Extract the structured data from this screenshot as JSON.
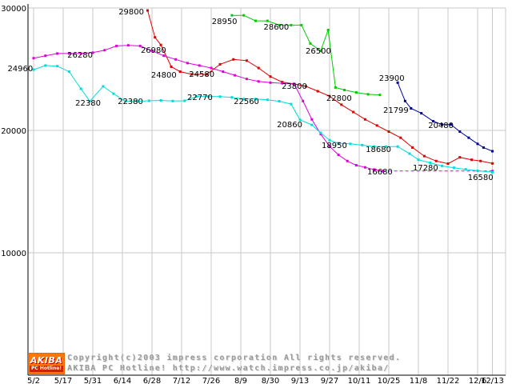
{
  "chart_data": {
    "type": "line",
    "title": "",
    "xlabel": "",
    "ylabel": "",
    "ylim": [
      0,
      30650
    ],
    "grid": true,
    "axis_color": "#000000",
    "grid_color": "#c9c9c9",
    "label_color": "#000000",
    "x_ticks": [
      {
        "label": "5/2",
        "i": 0
      },
      {
        "label": "5/17",
        "i": 1
      },
      {
        "label": "5/31",
        "i": 2
      },
      {
        "label": "6/14",
        "i": 3
      },
      {
        "label": "6/28",
        "i": 4
      },
      {
        "label": "7/12",
        "i": 5
      },
      {
        "label": "7/26",
        "i": 6
      },
      {
        "label": "8/9",
        "i": 7
      },
      {
        "label": "8/30",
        "i": 8
      },
      {
        "label": "9/13",
        "i": 9
      },
      {
        "label": "9/27",
        "i": 10
      },
      {
        "label": "10/11",
        "i": 11
      },
      {
        "label": "10/25",
        "i": 12
      },
      {
        "label": "11/8",
        "i": 13
      },
      {
        "label": "11/22",
        "i": 14
      },
      {
        "label": "12/6",
        "i": 15
      },
      {
        "label": "12/13",
        "i": 15.5
      }
    ],
    "y_ticks": [
      {
        "label": "10000",
        "v": 10000
      },
      {
        "label": "20000",
        "v": 20000
      },
      {
        "label": "30000",
        "v": 30000
      }
    ],
    "series": [
      {
        "name": "series-red",
        "color": "#dd0000",
        "dashed": false,
        "points": [
          [
            3.85,
            29800
          ],
          [
            4.1,
            27600
          ],
          [
            4.3,
            26980
          ],
          [
            4.65,
            25200
          ],
          [
            4.95,
            24800
          ],
          [
            5.35,
            24580
          ],
          [
            5.85,
            24580
          ],
          [
            6.3,
            25400
          ],
          [
            6.75,
            25800
          ],
          [
            7.2,
            25700
          ],
          [
            7.6,
            25100
          ],
          [
            8.0,
            24400
          ],
          [
            8.4,
            23950
          ],
          [
            8.8,
            23800
          ],
          [
            9.2,
            23600
          ],
          [
            9.6,
            23200
          ],
          [
            10.0,
            22800
          ],
          [
            10.4,
            22100
          ],
          [
            10.8,
            21500
          ],
          [
            11.2,
            20900
          ],
          [
            11.6,
            20400
          ],
          [
            12.0,
            19900
          ],
          [
            12.4,
            19400
          ],
          [
            12.8,
            18600
          ],
          [
            13.2,
            17900
          ],
          [
            13.6,
            17500
          ],
          [
            14.0,
            17280
          ],
          [
            14.4,
            17800
          ],
          [
            14.8,
            17600
          ],
          [
            15.1,
            17500
          ],
          [
            15.5,
            17300
          ]
        ]
      },
      {
        "name": "series-green",
        "color": "#00cc00",
        "dashed": false,
        "points": [
          [
            6.7,
            29400
          ],
          [
            7.1,
            29400
          ],
          [
            7.5,
            28950
          ],
          [
            7.9,
            28950
          ],
          [
            8.3,
            28600
          ],
          [
            8.7,
            28600
          ],
          [
            9.05,
            28600
          ],
          [
            9.35,
            27100
          ],
          [
            9.7,
            26500
          ],
          [
            9.95,
            28200
          ],
          [
            10.2,
            23500
          ],
          [
            10.5,
            23300
          ],
          [
            10.9,
            23100
          ],
          [
            11.3,
            22950
          ],
          [
            11.7,
            22900
          ]
        ]
      },
      {
        "name": "series-magenta",
        "color": "#dd00dd",
        "dashed": false,
        "points": [
          [
            0,
            25900
          ],
          [
            0.4,
            26100
          ],
          [
            0.8,
            26280
          ],
          [
            1.2,
            26280
          ],
          [
            1.6,
            26280
          ],
          [
            2.0,
            26350
          ],
          [
            2.4,
            26550
          ],
          [
            2.8,
            26900
          ],
          [
            3.2,
            26950
          ],
          [
            3.6,
            26900
          ],
          [
            4.0,
            26500
          ],
          [
            4.4,
            26100
          ],
          [
            4.8,
            25800
          ],
          [
            5.2,
            25500
          ],
          [
            5.6,
            25300
          ],
          [
            6.0,
            25100
          ],
          [
            6.4,
            24800
          ],
          [
            6.8,
            24500
          ],
          [
            7.2,
            24200
          ],
          [
            7.6,
            24000
          ],
          [
            8.0,
            23900
          ],
          [
            8.4,
            23850
          ],
          [
            8.8,
            23800
          ],
          [
            9.1,
            22400
          ],
          [
            9.4,
            20900
          ],
          [
            9.7,
            19700
          ],
          [
            10.0,
            18700
          ],
          [
            10.3,
            18000
          ],
          [
            10.6,
            17500
          ],
          [
            10.9,
            17150
          ],
          [
            11.2,
            16980
          ],
          [
            11.5,
            16800
          ],
          [
            11.8,
            16680
          ]
        ]
      },
      {
        "name": "series-magenta-flat",
        "color": "#dd00dd",
        "dashed": true,
        "points": [
          [
            11.8,
            16680
          ],
          [
            15.5,
            16680
          ]
        ]
      },
      {
        "name": "series-cyan",
        "color": "#00dddd",
        "dashed": false,
        "points": [
          [
            0,
            24960
          ],
          [
            0.4,
            25300
          ],
          [
            0.8,
            25250
          ],
          [
            1.2,
            24800
          ],
          [
            1.6,
            23400
          ],
          [
            1.9,
            22380
          ],
          [
            2.35,
            23600
          ],
          [
            2.7,
            23000
          ],
          [
            3.1,
            22380
          ],
          [
            3.5,
            22380
          ],
          [
            3.9,
            22420
          ],
          [
            4.3,
            22450
          ],
          [
            4.7,
            22400
          ],
          [
            5.1,
            22420
          ],
          [
            5.5,
            22770
          ],
          [
            5.9,
            22770
          ],
          [
            6.3,
            22760
          ],
          [
            6.7,
            22700
          ],
          [
            7.1,
            22560
          ],
          [
            7.5,
            22560
          ],
          [
            7.9,
            22500
          ],
          [
            8.3,
            22380
          ],
          [
            8.7,
            22150
          ],
          [
            9.0,
            20860
          ],
          [
            9.4,
            20450
          ],
          [
            9.7,
            19800
          ],
          [
            10.0,
            19200
          ],
          [
            10.3,
            18950
          ],
          [
            10.7,
            18900
          ],
          [
            11.1,
            18800
          ],
          [
            11.5,
            18680
          ],
          [
            11.9,
            18680
          ],
          [
            12.3,
            18680
          ],
          [
            12.7,
            18100
          ],
          [
            13.0,
            17600
          ],
          [
            13.4,
            17350
          ],
          [
            13.8,
            17100
          ],
          [
            14.2,
            16950
          ],
          [
            14.6,
            16820
          ],
          [
            15.0,
            16700
          ],
          [
            15.5,
            16580
          ]
        ]
      },
      {
        "name": "series-navy",
        "color": "#000099",
        "dashed": false,
        "points": [
          [
            12.3,
            23900
          ],
          [
            12.55,
            22400
          ],
          [
            12.75,
            21799
          ],
          [
            13.1,
            21400
          ],
          [
            13.5,
            20750
          ],
          [
            13.8,
            20480
          ],
          [
            14.1,
            20480
          ],
          [
            14.4,
            19900
          ],
          [
            14.7,
            19400
          ],
          [
            15.0,
            18900
          ],
          [
            15.2,
            18600
          ],
          [
            15.5,
            18300
          ]
        ]
      }
    ],
    "point_labels": [
      {
        "text": "29800",
        "i": 3.3,
        "v": 29480
      },
      {
        "text": "26980",
        "i": 4.05,
        "v": 26340
      },
      {
        "text": "26280",
        "i": 1.57,
        "v": 25950
      },
      {
        "text": "28950",
        "i": 6.45,
        "v": 28700
      },
      {
        "text": "28600",
        "i": 8.2,
        "v": 28230
      },
      {
        "text": "26500",
        "i": 9.62,
        "v": 26270
      },
      {
        "text": "24960",
        "i": -0.45,
        "v": 24840
      },
      {
        "text": "24800",
        "i": 4.4,
        "v": 24310
      },
      {
        "text": "24580",
        "i": 5.68,
        "v": 24380
      },
      {
        "text": "22380",
        "i": 1.84,
        "v": 22030
      },
      {
        "text": "22380",
        "i": 3.27,
        "v": 22160
      },
      {
        "text": "22770",
        "i": 5.62,
        "v": 22480
      },
      {
        "text": "22560",
        "i": 7.19,
        "v": 22160
      },
      {
        "text": "23800",
        "i": 8.81,
        "v": 23400
      },
      {
        "text": "22800",
        "i": 10.32,
        "v": 22420
      },
      {
        "text": "20860",
        "i": 8.65,
        "v": 20260
      },
      {
        "text": "23900",
        "i": 12.1,
        "v": 24050
      },
      {
        "text": "21799",
        "i": 12.24,
        "v": 21440
      },
      {
        "text": "20480",
        "i": 13.76,
        "v": 20200
      },
      {
        "text": "18950",
        "i": 10.16,
        "v": 18560
      },
      {
        "text": "18680",
        "i": 11.65,
        "v": 18240
      },
      {
        "text": "16680",
        "i": 11.7,
        "v": 16410
      },
      {
        "text": "17280",
        "i": 13.24,
        "v": 16730
      },
      {
        "text": "16580",
        "i": 15.1,
        "v": 15950
      }
    ]
  },
  "footer": {
    "logo_top": "AKIBA",
    "logo_bottom": "PC Hotline!",
    "line1": "Copyright(c)2003 impress corporation All rights reserved.",
    "line2": "AKIBA PC Hotline! http://www.watch.impress.co.jp/akiba/"
  }
}
